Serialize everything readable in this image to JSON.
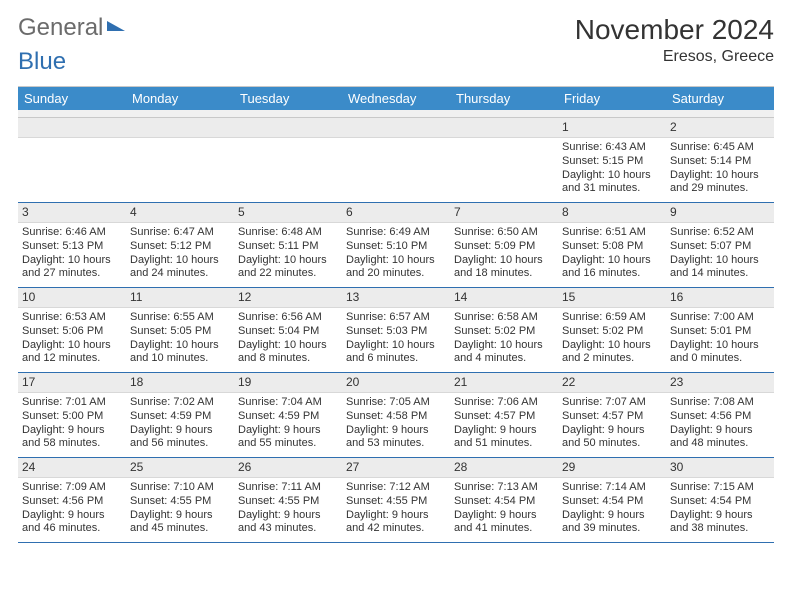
{
  "logo": {
    "part1": "General",
    "part2": "Blue"
  },
  "title": "November 2024",
  "subtitle": "Eresos, Greece",
  "colors": {
    "header_bg": "#3b8bc9",
    "header_text": "#ffffff",
    "daynum_bg": "#ececec",
    "week_border": "#2f6fb0",
    "body_text": "#333333",
    "logo_gray": "#6b6b6b",
    "logo_blue": "#2f6fb0"
  },
  "typography": {
    "title_fontsize": 28,
    "subtitle_fontsize": 16,
    "dow_fontsize": 13,
    "cell_fontsize": 11
  },
  "days_of_week": [
    "Sunday",
    "Monday",
    "Tuesday",
    "Wednesday",
    "Thursday",
    "Friday",
    "Saturday"
  ],
  "weeks": [
    [
      null,
      null,
      null,
      null,
      null,
      {
        "n": "1",
        "sunrise": "Sunrise: 6:43 AM",
        "sunset": "Sunset: 5:15 PM",
        "daylight": "Daylight: 10 hours and 31 minutes."
      },
      {
        "n": "2",
        "sunrise": "Sunrise: 6:45 AM",
        "sunset": "Sunset: 5:14 PM",
        "daylight": "Daylight: 10 hours and 29 minutes."
      }
    ],
    [
      {
        "n": "3",
        "sunrise": "Sunrise: 6:46 AM",
        "sunset": "Sunset: 5:13 PM",
        "daylight": "Daylight: 10 hours and 27 minutes."
      },
      {
        "n": "4",
        "sunrise": "Sunrise: 6:47 AM",
        "sunset": "Sunset: 5:12 PM",
        "daylight": "Daylight: 10 hours and 24 minutes."
      },
      {
        "n": "5",
        "sunrise": "Sunrise: 6:48 AM",
        "sunset": "Sunset: 5:11 PM",
        "daylight": "Daylight: 10 hours and 22 minutes."
      },
      {
        "n": "6",
        "sunrise": "Sunrise: 6:49 AM",
        "sunset": "Sunset: 5:10 PM",
        "daylight": "Daylight: 10 hours and 20 minutes."
      },
      {
        "n": "7",
        "sunrise": "Sunrise: 6:50 AM",
        "sunset": "Sunset: 5:09 PM",
        "daylight": "Daylight: 10 hours and 18 minutes."
      },
      {
        "n": "8",
        "sunrise": "Sunrise: 6:51 AM",
        "sunset": "Sunset: 5:08 PM",
        "daylight": "Daylight: 10 hours and 16 minutes."
      },
      {
        "n": "9",
        "sunrise": "Sunrise: 6:52 AM",
        "sunset": "Sunset: 5:07 PM",
        "daylight": "Daylight: 10 hours and 14 minutes."
      }
    ],
    [
      {
        "n": "10",
        "sunrise": "Sunrise: 6:53 AM",
        "sunset": "Sunset: 5:06 PM",
        "daylight": "Daylight: 10 hours and 12 minutes."
      },
      {
        "n": "11",
        "sunrise": "Sunrise: 6:55 AM",
        "sunset": "Sunset: 5:05 PM",
        "daylight": "Daylight: 10 hours and 10 minutes."
      },
      {
        "n": "12",
        "sunrise": "Sunrise: 6:56 AM",
        "sunset": "Sunset: 5:04 PM",
        "daylight": "Daylight: 10 hours and 8 minutes."
      },
      {
        "n": "13",
        "sunrise": "Sunrise: 6:57 AM",
        "sunset": "Sunset: 5:03 PM",
        "daylight": "Daylight: 10 hours and 6 minutes."
      },
      {
        "n": "14",
        "sunrise": "Sunrise: 6:58 AM",
        "sunset": "Sunset: 5:02 PM",
        "daylight": "Daylight: 10 hours and 4 minutes."
      },
      {
        "n": "15",
        "sunrise": "Sunrise: 6:59 AM",
        "sunset": "Sunset: 5:02 PM",
        "daylight": "Daylight: 10 hours and 2 minutes."
      },
      {
        "n": "16",
        "sunrise": "Sunrise: 7:00 AM",
        "sunset": "Sunset: 5:01 PM",
        "daylight": "Daylight: 10 hours and 0 minutes."
      }
    ],
    [
      {
        "n": "17",
        "sunrise": "Sunrise: 7:01 AM",
        "sunset": "Sunset: 5:00 PM",
        "daylight": "Daylight: 9 hours and 58 minutes."
      },
      {
        "n": "18",
        "sunrise": "Sunrise: 7:02 AM",
        "sunset": "Sunset: 4:59 PM",
        "daylight": "Daylight: 9 hours and 56 minutes."
      },
      {
        "n": "19",
        "sunrise": "Sunrise: 7:04 AM",
        "sunset": "Sunset: 4:59 PM",
        "daylight": "Daylight: 9 hours and 55 minutes."
      },
      {
        "n": "20",
        "sunrise": "Sunrise: 7:05 AM",
        "sunset": "Sunset: 4:58 PM",
        "daylight": "Daylight: 9 hours and 53 minutes."
      },
      {
        "n": "21",
        "sunrise": "Sunrise: 7:06 AM",
        "sunset": "Sunset: 4:57 PM",
        "daylight": "Daylight: 9 hours and 51 minutes."
      },
      {
        "n": "22",
        "sunrise": "Sunrise: 7:07 AM",
        "sunset": "Sunset: 4:57 PM",
        "daylight": "Daylight: 9 hours and 50 minutes."
      },
      {
        "n": "23",
        "sunrise": "Sunrise: 7:08 AM",
        "sunset": "Sunset: 4:56 PM",
        "daylight": "Daylight: 9 hours and 48 minutes."
      }
    ],
    [
      {
        "n": "24",
        "sunrise": "Sunrise: 7:09 AM",
        "sunset": "Sunset: 4:56 PM",
        "daylight": "Daylight: 9 hours and 46 minutes."
      },
      {
        "n": "25",
        "sunrise": "Sunrise: 7:10 AM",
        "sunset": "Sunset: 4:55 PM",
        "daylight": "Daylight: 9 hours and 45 minutes."
      },
      {
        "n": "26",
        "sunrise": "Sunrise: 7:11 AM",
        "sunset": "Sunset: 4:55 PM",
        "daylight": "Daylight: 9 hours and 43 minutes."
      },
      {
        "n": "27",
        "sunrise": "Sunrise: 7:12 AM",
        "sunset": "Sunset: 4:55 PM",
        "daylight": "Daylight: 9 hours and 42 minutes."
      },
      {
        "n": "28",
        "sunrise": "Sunrise: 7:13 AM",
        "sunset": "Sunset: 4:54 PM",
        "daylight": "Daylight: 9 hours and 41 minutes."
      },
      {
        "n": "29",
        "sunrise": "Sunrise: 7:14 AM",
        "sunset": "Sunset: 4:54 PM",
        "daylight": "Daylight: 9 hours and 39 minutes."
      },
      {
        "n": "30",
        "sunrise": "Sunrise: 7:15 AM",
        "sunset": "Sunset: 4:54 PM",
        "daylight": "Daylight: 9 hours and 38 minutes."
      }
    ]
  ]
}
